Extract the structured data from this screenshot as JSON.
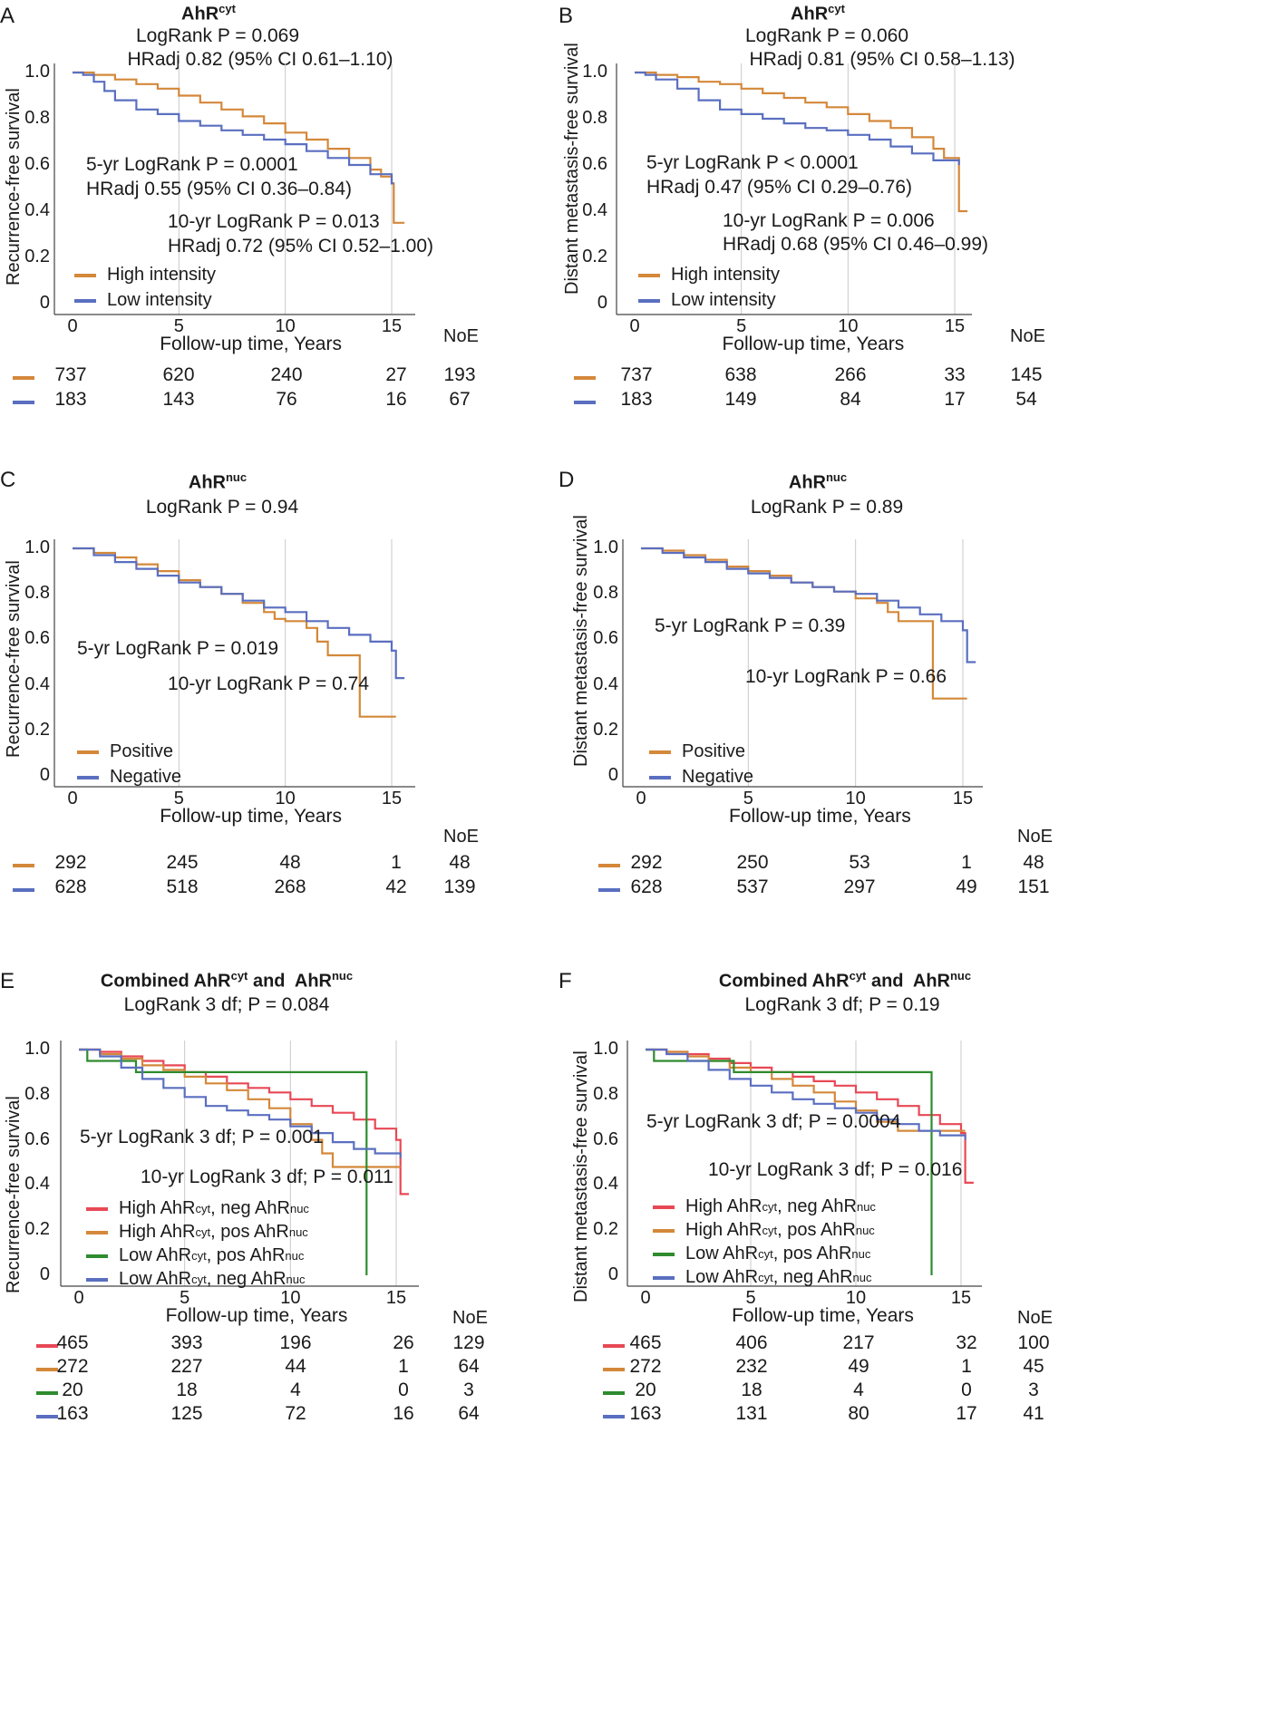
{
  "colors": {
    "orange": "#D4883A",
    "blue": "#5A6FC0",
    "red": "#E84855",
    "green": "#2E8B2E",
    "grid": "#c9c9c9",
    "axis": "#444444"
  },
  "chart_data": [
    {
      "type": "line",
      "panel": "A",
      "title": {
        "base": "AhR",
        "sup": "cyt"
      },
      "logrank": "LogRank P = 0.069",
      "hr": "HRadj 0.82 (95% CI 0.61–1.10)",
      "annotations": [
        "5-yr LogRank P = 0.0001",
        "HRadj 0.55 (95% CI 0.36–0.84)",
        "10-yr LogRank P = 0.013",
        "HRadj 0.72 (95% CI 0.52–1.00)"
      ],
      "ylabel": "Recurrence-free survival",
      "xlabel": "Follow-up time, Years",
      "xticks": [
        "0",
        "5",
        "10",
        "15"
      ],
      "yticks": [
        "1.0",
        "0.8",
        "0.6",
        "0.4",
        "0.2",
        "0"
      ],
      "xlim": [
        -1,
        16
      ],
      "ylim": [
        0,
        1
      ],
      "noe_label": "NoE",
      "series": [
        {
          "name": "High intensity",
          "color": "orange",
          "x": [
            0,
            1,
            2,
            3,
            4,
            5,
            6,
            7,
            8,
            9,
            10,
            11,
            12,
            13,
            14,
            14.5,
            15,
            15.1,
            15.1,
            15.6
          ],
          "y": [
            1.0,
            0.99,
            0.97,
            0.95,
            0.93,
            0.9,
            0.87,
            0.84,
            0.81,
            0.78,
            0.74,
            0.71,
            0.67,
            0.63,
            0.58,
            0.55,
            0.52,
            0.52,
            0.35,
            0.35
          ],
          "risk": [
            "737",
            "620",
            "240",
            "27"
          ],
          "noe": "193"
        },
        {
          "name": "Low intensity",
          "color": "blue",
          "x": [
            0,
            0.5,
            1,
            1.5,
            2,
            3,
            4,
            5,
            6,
            7,
            8,
            9,
            10,
            11,
            12,
            13,
            14,
            15,
            15.1
          ],
          "y": [
            1.0,
            0.99,
            0.96,
            0.92,
            0.88,
            0.84,
            0.82,
            0.79,
            0.77,
            0.75,
            0.73,
            0.71,
            0.69,
            0.66,
            0.63,
            0.6,
            0.56,
            0.52,
            0.52
          ],
          "risk": [
            "183",
            "143",
            "76",
            "16"
          ],
          "noe": "67"
        }
      ]
    },
    {
      "type": "line",
      "panel": "B",
      "title": {
        "base": "AhR",
        "sup": "cyt"
      },
      "logrank": "LogRank P = 0.060",
      "hr": "HRadj 0.81 (95% CI 0.58–1.13)",
      "annotations": [
        "5-yr LogRank P < 0.0001",
        "HRadj 0.47 (95% CI 0.29–0.76)",
        "10-yr LogRank P = 0.006",
        "HRadj 0.68 (95% CI 0.46–0.99)"
      ],
      "ylabel": "Distant metastasis-free survival",
      "xlabel": "Follow-up time, Years",
      "xticks": [
        "0",
        "5",
        "10",
        "15"
      ],
      "yticks": [
        "1.0",
        "0.8",
        "0.6",
        "0.4",
        "0.2",
        "0"
      ],
      "xlim": [
        -1,
        16
      ],
      "ylim": [
        0,
        1
      ],
      "noe_label": "NoE",
      "series": [
        {
          "name": "High intensity",
          "color": "orange",
          "x": [
            0,
            1,
            2,
            3,
            4,
            5,
            6,
            7,
            8,
            9,
            10,
            11,
            12,
            13,
            14,
            14.5,
            15.2,
            15.2,
            15.6
          ],
          "y": [
            1.0,
            0.99,
            0.98,
            0.96,
            0.95,
            0.93,
            0.91,
            0.89,
            0.87,
            0.85,
            0.82,
            0.79,
            0.76,
            0.72,
            0.67,
            0.63,
            0.6,
            0.4,
            0.4
          ],
          "risk": [
            "737",
            "638",
            "266",
            "33"
          ],
          "noe": "145"
        },
        {
          "name": "Low intensity",
          "color": "blue",
          "x": [
            0,
            0.5,
            1,
            2,
            3,
            4,
            5,
            6,
            7,
            8,
            9,
            10,
            11,
            12,
            13,
            14,
            15.2
          ],
          "y": [
            1.0,
            0.99,
            0.97,
            0.93,
            0.88,
            0.84,
            0.82,
            0.8,
            0.78,
            0.76,
            0.75,
            0.73,
            0.71,
            0.68,
            0.65,
            0.62,
            0.6
          ],
          "risk": [
            "183",
            "149",
            "84",
            "17"
          ],
          "noe": "54"
        }
      ]
    },
    {
      "type": "line",
      "panel": "C",
      "title": {
        "base": "AhR",
        "sup": "nuc"
      },
      "logrank": "LogRank P = 0.94",
      "annotations": [
        "5-yr LogRank P = 0.019",
        "10-yr LogRank P = 0.74"
      ],
      "ylabel": "Recurrence-free survival",
      "xlabel": "Follow-up time, Years",
      "xticks": [
        "0",
        "5",
        "10",
        "15"
      ],
      "yticks": [
        "1.0",
        "0.8",
        "0.6",
        "0.4",
        "0.2",
        "0"
      ],
      "xlim": [
        -1,
        16
      ],
      "ylim": [
        0,
        1
      ],
      "noe_label": "NoE",
      "series": [
        {
          "name": "Positive",
          "color": "orange",
          "x": [
            0,
            1,
            2,
            3,
            4,
            5,
            6,
            7,
            8,
            9,
            9.5,
            10,
            11,
            11.5,
            12,
            13.5,
            13.5,
            15.2
          ],
          "y": [
            1.0,
            0.98,
            0.96,
            0.93,
            0.9,
            0.86,
            0.83,
            0.8,
            0.76,
            0.72,
            0.69,
            0.68,
            0.65,
            0.59,
            0.53,
            0.53,
            0.26,
            0.26
          ],
          "risk": [
            "292",
            "245",
            "48",
            "1"
          ],
          "noe": "48"
        },
        {
          "name": "Negative",
          "color": "blue",
          "x": [
            0,
            1,
            2,
            3,
            4,
            5,
            6,
            7,
            8,
            9,
            10,
            11,
            12,
            13,
            14,
            15,
            15.2,
            15.2,
            15.6
          ],
          "y": [
            1.0,
            0.97,
            0.94,
            0.91,
            0.88,
            0.85,
            0.83,
            0.8,
            0.77,
            0.74,
            0.72,
            0.68,
            0.65,
            0.62,
            0.59,
            0.55,
            0.54,
            0.43,
            0.43
          ],
          "risk": [
            "628",
            "518",
            "268",
            "42"
          ],
          "noe": "139"
        }
      ]
    },
    {
      "type": "line",
      "panel": "D",
      "title": {
        "base": "AhR",
        "sup": "nuc"
      },
      "logrank": "LogRank P = 0.89",
      "annotations": [
        "5-yr LogRank P = 0.39",
        "10-yr LogRank P = 0.66"
      ],
      "ylabel": "Distant metastasis-free survival",
      "xlabel": "Follow-up time, Years",
      "xticks": [
        "0",
        "5",
        "10",
        "15"
      ],
      "yticks": [
        "1.0",
        "0.8",
        "0.6",
        "0.4",
        "0.2",
        "0"
      ],
      "xlim": [
        -1,
        16
      ],
      "ylim": [
        0,
        1
      ],
      "noe_label": "NoE",
      "series": [
        {
          "name": "Positive",
          "color": "orange",
          "x": [
            0,
            1,
            2,
            3,
            4,
            5,
            6,
            7,
            8,
            9,
            10,
            11,
            11.5,
            12,
            13.6,
            13.6,
            15.2
          ],
          "y": [
            1.0,
            0.99,
            0.97,
            0.95,
            0.92,
            0.9,
            0.88,
            0.85,
            0.83,
            0.81,
            0.78,
            0.76,
            0.72,
            0.68,
            0.68,
            0.34,
            0.34
          ],
          "risk": [
            "292",
            "250",
            "53",
            "1"
          ],
          "noe": "48"
        },
        {
          "name": "Negative",
          "color": "blue",
          "x": [
            0,
            1,
            2,
            3,
            4,
            5,
            6,
            7,
            8,
            9,
            10,
            11,
            12,
            13,
            14,
            15,
            15.2,
            15.2,
            15.6
          ],
          "y": [
            1.0,
            0.98,
            0.96,
            0.94,
            0.91,
            0.89,
            0.87,
            0.85,
            0.83,
            0.81,
            0.8,
            0.77,
            0.74,
            0.71,
            0.68,
            0.64,
            0.63,
            0.5,
            0.5
          ],
          "risk": [
            "628",
            "537",
            "297",
            "49"
          ],
          "noe": "151"
        }
      ]
    },
    {
      "type": "line",
      "panel": "E",
      "title_prefix": "Combined ",
      "title": {
        "base": "AhR",
        "sup": "cyt"
      },
      "title_mid": " and  ",
      "title2": {
        "base": "AhR",
        "sup": "nuc"
      },
      "logrank": "LogRank 3 df; P = 0.084",
      "annotations": [
        "5-yr LogRank 3 df; P = 0.001",
        "10-yr LogRank 3 df; P = 0.011"
      ],
      "ylabel": "Recurrence-free survival",
      "xlabel": "Follow-up time, Years",
      "xticks": [
        "0",
        "5",
        "10",
        "15"
      ],
      "yticks": [
        "1.0",
        "0.8",
        "0.6",
        "0.4",
        "0.2",
        "0"
      ],
      "xlim": [
        -1,
        16
      ],
      "ylim": [
        0,
        1
      ],
      "noe_label": "NoE",
      "legend_sup": [
        "cyt",
        "nuc"
      ],
      "series": [
        {
          "name": "High AhRcyt, neg AhRnuc",
          "label": [
            "High AhR",
            "cyt",
            ", neg AhR",
            "nuc"
          ],
          "color": "red",
          "x": [
            0,
            1,
            2,
            3,
            4,
            5,
            6,
            7,
            8,
            9,
            10,
            11,
            12,
            13,
            14,
            15,
            15.2,
            15.2,
            15.6
          ],
          "y": [
            1.0,
            0.99,
            0.97,
            0.95,
            0.93,
            0.9,
            0.88,
            0.85,
            0.83,
            0.81,
            0.78,
            0.75,
            0.72,
            0.69,
            0.65,
            0.6,
            0.55,
            0.36,
            0.36
          ],
          "risk": [
            "465",
            "393",
            "196",
            "26"
          ],
          "noe": "129"
        },
        {
          "name": "High AhRcyt, pos AhRnuc",
          "label": [
            "High AhR",
            "cyt",
            ", pos AhR",
            "nuc"
          ],
          "color": "orange",
          "x": [
            0,
            1,
            2,
            3,
            4,
            5,
            6,
            7,
            8,
            9,
            10,
            11,
            11.5,
            12,
            15.2
          ],
          "y": [
            1.0,
            0.98,
            0.96,
            0.93,
            0.91,
            0.88,
            0.85,
            0.82,
            0.78,
            0.74,
            0.67,
            0.6,
            0.54,
            0.48,
            0.48
          ],
          "risk": [
            "272",
            "227",
            "44",
            "1"
          ],
          "noe": "64"
        },
        {
          "name": "Low AhRcyt, pos AhRnuc",
          "label": [
            "Low AhR",
            "cyt",
            ", pos AhR",
            "nuc"
          ],
          "color": "green",
          "x": [
            0,
            0.4,
            0.4,
            2.7,
            2.7,
            13.6,
            13.6
          ],
          "y": [
            1.0,
            1.0,
            0.95,
            0.95,
            0.9,
            0.9,
            0.0
          ],
          "risk": [
            "20",
            "18",
            "4",
            "0"
          ],
          "noe": "3"
        },
        {
          "name": "Low AhRcyt, neg AhRnuc",
          "label": [
            "Low AhR",
            "cyt",
            ", neg AhR",
            "nuc"
          ],
          "color": "blue",
          "x": [
            0,
            1,
            2,
            3,
            4,
            5,
            6,
            7,
            8,
            9,
            10,
            11,
            12,
            13,
            14,
            15.2
          ],
          "y": [
            1.0,
            0.97,
            0.92,
            0.87,
            0.83,
            0.79,
            0.75,
            0.73,
            0.71,
            0.69,
            0.66,
            0.63,
            0.59,
            0.56,
            0.54,
            0.52
          ],
          "risk": [
            "163",
            "125",
            "72",
            "16"
          ],
          "noe": "64"
        }
      ]
    },
    {
      "type": "line",
      "panel": "F",
      "title_prefix": "Combined ",
      "title": {
        "base": "AhR",
        "sup": "cyt"
      },
      "title_mid": " and  ",
      "title2": {
        "base": "AhR",
        "sup": "nuc"
      },
      "logrank": "LogRank 3 df; P = 0.19",
      "annotations": [
        "5-yr LogRank 3 df; P = 0.0004",
        "10-yr LogRank 3 df; P = 0.016"
      ],
      "ylabel": "Distant metastasis-free survival",
      "xlabel": "Follow-up time, Years",
      "xticks": [
        "0",
        "5",
        "10",
        "15"
      ],
      "yticks": [
        "1.0",
        "0.8",
        "0.6",
        "0.4",
        "0.2",
        "0"
      ],
      "xlim": [
        -1,
        16
      ],
      "ylim": [
        0,
        1
      ],
      "noe_label": "NoE",
      "series": [
        {
          "name": "High AhRcyt, neg AhRnuc",
          "label": [
            "High AhR",
            "cyt",
            ", neg AhR",
            "nuc"
          ],
          "color": "red",
          "x": [
            0,
            1,
            2,
            3,
            4,
            5,
            6,
            7,
            8,
            9,
            10,
            11,
            12,
            13,
            14,
            15,
            15.2,
            15.2,
            15.6
          ],
          "y": [
            1.0,
            0.99,
            0.98,
            0.96,
            0.94,
            0.92,
            0.9,
            0.88,
            0.86,
            0.84,
            0.81,
            0.78,
            0.75,
            0.71,
            0.67,
            0.63,
            0.61,
            0.41,
            0.41
          ],
          "risk": [
            "465",
            "406",
            "217",
            "32"
          ],
          "noe": "100"
        },
        {
          "name": "High AhRcyt, pos AhRnuc",
          "label": [
            "High AhR",
            "cyt",
            ", pos AhR",
            "nuc"
          ],
          "color": "orange",
          "x": [
            0,
            1,
            2,
            3,
            4,
            5,
            6,
            7,
            8,
            9,
            10,
            11,
            12,
            13,
            14,
            15.2
          ],
          "y": [
            1.0,
            0.99,
            0.97,
            0.95,
            0.92,
            0.9,
            0.87,
            0.84,
            0.81,
            0.77,
            0.73,
            0.68,
            0.64,
            0.64,
            0.64,
            0.64
          ],
          "risk": [
            "272",
            "232",
            "49",
            "1"
          ],
          "noe": "45"
        },
        {
          "name": "Low AhRcyt, pos AhRnuc",
          "label": [
            "Low AhR",
            "cyt",
            ", pos AhR",
            "nuc"
          ],
          "color": "green",
          "x": [
            0,
            0.4,
            0.4,
            4.2,
            4.2,
            13.6,
            13.6
          ],
          "y": [
            1.0,
            1.0,
            0.95,
            0.95,
            0.9,
            0.9,
            0.0
          ],
          "risk": [
            "20",
            "18",
            "4",
            "0"
          ],
          "noe": "3"
        },
        {
          "name": "Low AhRcyt, neg AhRnuc",
          "label": [
            "Low AhR",
            "cyt",
            ", neg AhR",
            "nuc"
          ],
          "color": "blue",
          "x": [
            0,
            1,
            2,
            3,
            4,
            5,
            6,
            7,
            8,
            9,
            10,
            11,
            12,
            13,
            14,
            15.2
          ],
          "y": [
            1.0,
            0.98,
            0.95,
            0.91,
            0.87,
            0.84,
            0.81,
            0.78,
            0.76,
            0.74,
            0.72,
            0.69,
            0.67,
            0.64,
            0.62,
            0.6
          ],
          "risk": [
            "163",
            "131",
            "80",
            "17"
          ],
          "noe": "41"
        }
      ]
    }
  ]
}
